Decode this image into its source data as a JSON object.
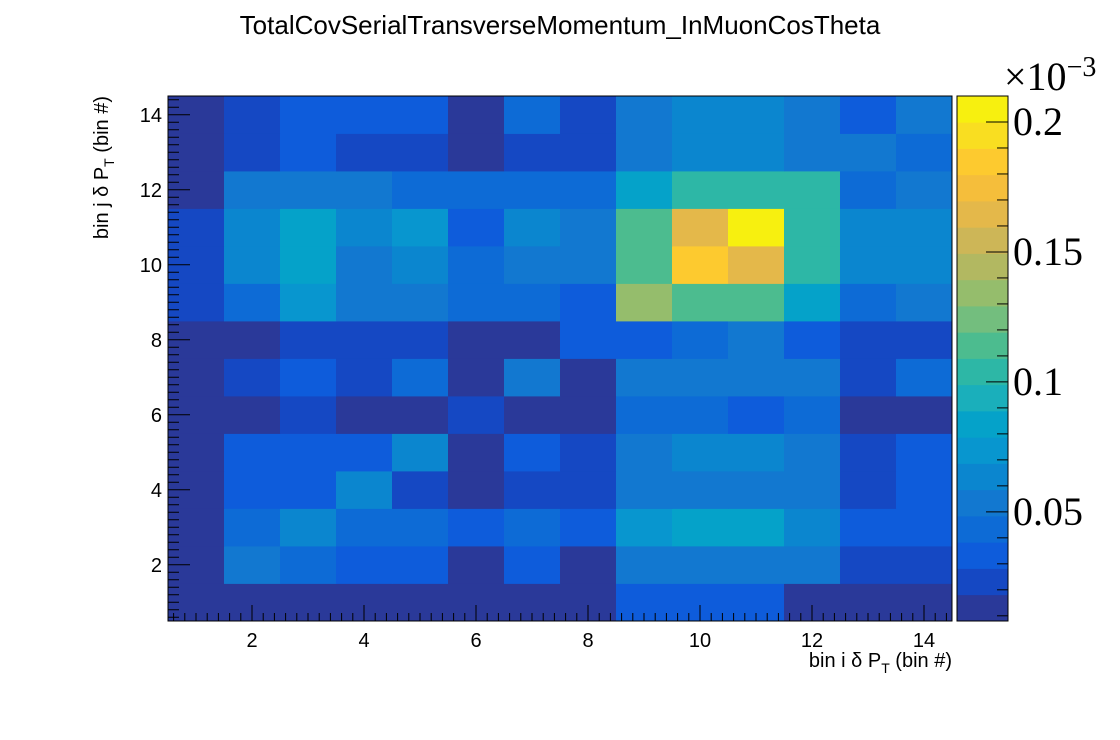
{
  "chart_data": {
    "type": "heatmap",
    "title": "TotalCovSerialTransverseMomentum_InMuonCosTheta",
    "xlabel": {
      "prefix": "bin i δ P",
      "sub": "T",
      "suffix": " (bin #)"
    },
    "ylabel": {
      "prefix": "bin j δ P",
      "sub": "T",
      "suffix": " (bin #)"
    },
    "x_bins": [
      1,
      2,
      3,
      4,
      5,
      6,
      7,
      8,
      9,
      10,
      11,
      12,
      13,
      14
    ],
    "y_bins": [
      1,
      2,
      3,
      4,
      5,
      6,
      7,
      8,
      9,
      10,
      11,
      12,
      13,
      14
    ],
    "xlim": [
      0.5,
      14.5
    ],
    "ylim": [
      0.5,
      14.5
    ],
    "x_ticks": [
      2,
      4,
      6,
      8,
      10,
      12,
      14
    ],
    "y_ticks": [
      2,
      4,
      6,
      8,
      10,
      12,
      14
    ],
    "z_range": [
      0.008,
      0.21
    ],
    "z_multiplier": "×10",
    "z_multiplier_exp": "−3",
    "z_ticks": [
      0.05,
      0.1,
      0.15,
      0.2
    ],
    "z_tick_labels": [
      "0.05",
      "0.1",
      "0.15",
      "0.2"
    ],
    "palette": [
      "#2a3999",
      "#1548c3",
      "#0e5cdb",
      "#0d6bd6",
      "#1278d0",
      "#0b86cf",
      "#0896cf",
      "#05a2c9",
      "#1aafbb",
      "#2db7a6",
      "#4cbc8f",
      "#73be7e",
      "#95bd6c",
      "#b2b861",
      "#cdb657",
      "#e4b84a",
      "#f5be3b",
      "#fdca2f",
      "#f9de21",
      "#f7f00f"
    ],
    "z": [
      [
        0.008,
        0.01,
        0.01,
        0.01,
        0.01,
        0.01,
        0.01,
        0.01,
        0.03,
        0.03,
        0.03,
        0.01,
        0.01,
        0.01
      ],
      [
        0.01,
        0.05,
        0.045,
        0.03,
        0.03,
        0.01,
        0.03,
        0.01,
        0.05,
        0.055,
        0.055,
        0.05,
        0.02,
        0.02
      ],
      [
        0.01,
        0.04,
        0.06,
        0.04,
        0.04,
        0.035,
        0.04,
        0.03,
        0.07,
        0.08,
        0.08,
        0.06,
        0.035,
        0.035
      ],
      [
        0.01,
        0.03,
        0.035,
        0.06,
        0.025,
        0.01,
        0.025,
        0.025,
        0.05,
        0.055,
        0.055,
        0.05,
        0.02,
        0.035
      ],
      [
        0.01,
        0.03,
        0.035,
        0.03,
        0.06,
        0.01,
        0.035,
        0.025,
        0.05,
        0.065,
        0.065,
        0.05,
        0.02,
        0.035
      ],
      [
        0.01,
        0.01,
        0.025,
        0.01,
        0.01,
        0.025,
        0.01,
        0.01,
        0.04,
        0.04,
        0.035,
        0.04,
        0.01,
        0.01
      ],
      [
        0.01,
        0.025,
        0.035,
        0.025,
        0.04,
        0.01,
        0.05,
        0.01,
        0.05,
        0.055,
        0.055,
        0.05,
        0.02,
        0.04
      ],
      [
        0.01,
        0.01,
        0.025,
        0.025,
        0.025,
        0.01,
        0.01,
        0.035,
        0.035,
        0.04,
        0.05,
        0.035,
        0.025,
        0.025
      ],
      [
        0.025,
        0.045,
        0.07,
        0.05,
        0.05,
        0.04,
        0.045,
        0.035,
        0.13,
        0.11,
        0.11,
        0.08,
        0.045,
        0.055
      ],
      [
        0.025,
        0.06,
        0.08,
        0.055,
        0.065,
        0.04,
        0.055,
        0.05,
        0.11,
        0.18,
        0.16,
        0.1,
        0.06,
        0.06
      ],
      [
        0.025,
        0.06,
        0.08,
        0.06,
        0.07,
        0.035,
        0.06,
        0.055,
        0.11,
        0.16,
        0.21,
        0.1,
        0.06,
        0.06
      ],
      [
        0.01,
        0.05,
        0.055,
        0.05,
        0.045,
        0.04,
        0.045,
        0.04,
        0.08,
        0.1,
        0.1,
        0.1,
        0.045,
        0.055
      ],
      [
        0.01,
        0.025,
        0.035,
        0.02,
        0.02,
        0.01,
        0.02,
        0.02,
        0.05,
        0.06,
        0.06,
        0.05,
        0.05,
        0.04
      ],
      [
        0.01,
        0.025,
        0.035,
        0.035,
        0.035,
        0.01,
        0.04,
        0.02,
        0.055,
        0.06,
        0.06,
        0.055,
        0.035,
        0.055
      ]
    ]
  }
}
